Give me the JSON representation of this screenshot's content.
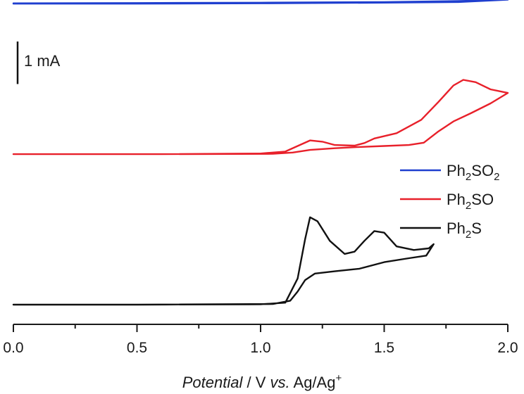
{
  "chart_data": {
    "type": "line",
    "title": "",
    "xlabel_parts": {
      "italic": "Potential",
      "plain1": " / V ",
      "italic2": "vs.",
      "plain2": " Ag/Ag",
      "superscript": "+"
    },
    "ylabel": "",
    "xlim": [
      0.0,
      2.0
    ],
    "x_ticks": [
      0.0,
      0.5,
      1.0,
      1.5,
      2.0
    ],
    "x_tick_labels": [
      "0.0",
      "0.5",
      "1.0",
      "1.5",
      "2.0"
    ],
    "y_units": "mA",
    "y_axis_shown": false,
    "scale_bar": {
      "label": "1 mA",
      "value_mA": 1
    },
    "legend": [
      {
        "key": "Ph2SO2",
        "base": "Ph",
        "sub1": "2",
        "mid": "SO",
        "sub2": "2",
        "color": "#1f3fcf"
      },
      {
        "key": "Ph2SO",
        "base": "Ph",
        "sub1": "2",
        "mid": "SO",
        "sub2": "",
        "color": "#e8202a"
      },
      {
        "key": "Ph2S",
        "base": "Ph",
        "sub1": "2",
        "mid": "S",
        "sub2": "",
        "color": "#111111"
      }
    ],
    "series": [
      {
        "name": "Ph2SO2",
        "color": "#1f3fcf",
        "offset_mA": 9.2,
        "forward": [
          [
            0.0,
            0.0
          ],
          [
            0.5,
            0.0
          ],
          [
            1.0,
            0.01
          ],
          [
            1.5,
            0.03
          ],
          [
            1.8,
            0.05
          ],
          [
            2.0,
            0.12
          ]
        ],
        "reverse": [
          [
            2.0,
            0.12
          ],
          [
            1.8,
            0.08
          ],
          [
            1.5,
            0.05
          ],
          [
            1.0,
            0.03
          ],
          [
            0.5,
            0.02
          ],
          [
            0.0,
            0.01
          ]
        ]
      },
      {
        "name": "Ph2SO",
        "color": "#e8202a",
        "offset_mA": 4.6,
        "forward": [
          [
            0.0,
            0.0
          ],
          [
            0.6,
            0.0
          ],
          [
            1.0,
            0.02
          ],
          [
            1.1,
            0.08
          ],
          [
            1.15,
            0.25
          ],
          [
            1.2,
            0.42
          ],
          [
            1.25,
            0.38
          ],
          [
            1.3,
            0.28
          ],
          [
            1.38,
            0.26
          ],
          [
            1.42,
            0.34
          ],
          [
            1.46,
            0.48
          ],
          [
            1.55,
            0.64
          ],
          [
            1.65,
            1.05
          ],
          [
            1.72,
            1.6
          ],
          [
            1.78,
            2.1
          ],
          [
            1.82,
            2.27
          ],
          [
            1.87,
            2.2
          ],
          [
            1.93,
            1.98
          ],
          [
            2.0,
            1.87
          ]
        ],
        "reverse": [
          [
            2.0,
            1.87
          ],
          [
            1.93,
            1.55
          ],
          [
            1.85,
            1.25
          ],
          [
            1.78,
            1.0
          ],
          [
            1.72,
            0.7
          ],
          [
            1.66,
            0.35
          ],
          [
            1.6,
            0.28
          ],
          [
            1.5,
            0.25
          ],
          [
            1.4,
            0.22
          ],
          [
            1.3,
            0.18
          ],
          [
            1.2,
            0.13
          ],
          [
            1.13,
            0.05
          ],
          [
            1.05,
            0.01
          ],
          [
            0.6,
            0.0
          ],
          [
            0.0,
            0.0
          ]
        ]
      },
      {
        "name": "Ph2S",
        "color": "#111111",
        "offset_mA": 0.0,
        "forward": [
          [
            0.0,
            0.0
          ],
          [
            0.5,
            0.0
          ],
          [
            1.0,
            0.01
          ],
          [
            1.1,
            0.06
          ],
          [
            1.15,
            0.8
          ],
          [
            1.18,
            2.0
          ],
          [
            1.2,
            2.67
          ],
          [
            1.23,
            2.55
          ],
          [
            1.28,
            1.95
          ],
          [
            1.34,
            1.55
          ],
          [
            1.38,
            1.62
          ],
          [
            1.42,
            1.95
          ],
          [
            1.46,
            2.25
          ],
          [
            1.5,
            2.2
          ],
          [
            1.55,
            1.78
          ],
          [
            1.62,
            1.67
          ],
          [
            1.68,
            1.72
          ],
          [
            1.7,
            1.85
          ]
        ],
        "reverse": [
          [
            1.7,
            1.85
          ],
          [
            1.67,
            1.5
          ],
          [
            1.6,
            1.42
          ],
          [
            1.5,
            1.3
          ],
          [
            1.4,
            1.1
          ],
          [
            1.3,
            1.02
          ],
          [
            1.22,
            0.95
          ],
          [
            1.18,
            0.75
          ],
          [
            1.15,
            0.4
          ],
          [
            1.12,
            0.12
          ],
          [
            1.05,
            0.02
          ],
          [
            0.5,
            0.0
          ],
          [
            0.0,
            0.0
          ]
        ]
      }
    ]
  }
}
